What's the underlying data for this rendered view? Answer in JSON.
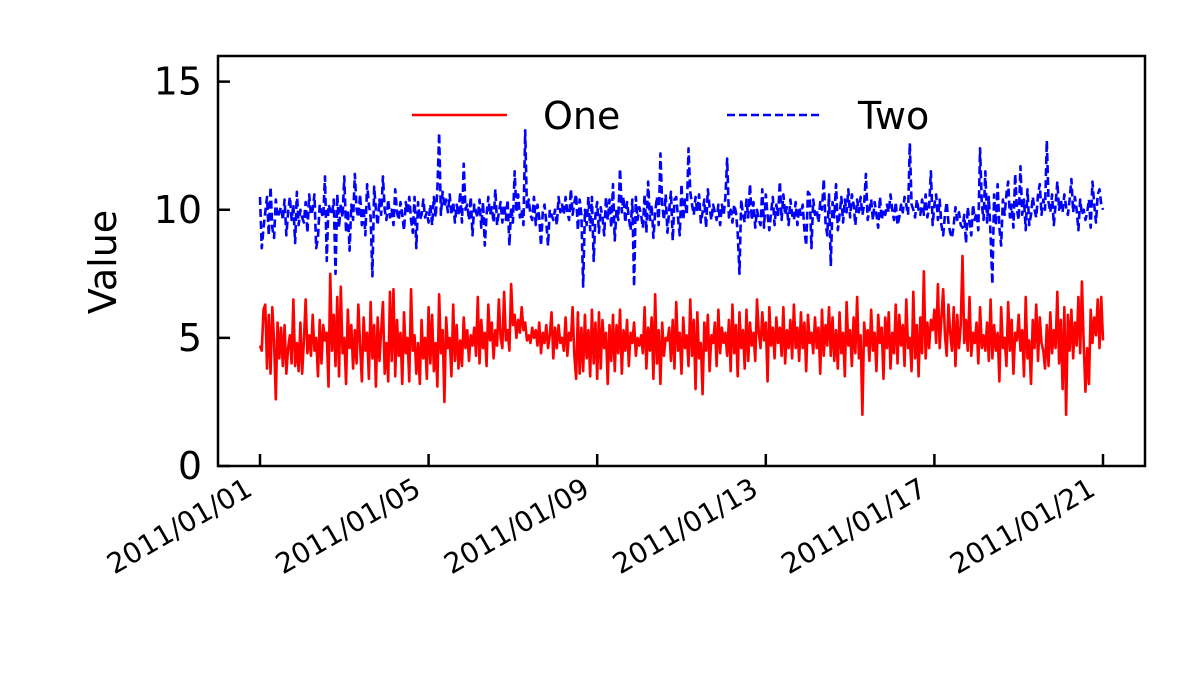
{
  "chart_data": {
    "type": "line",
    "title": "",
    "xlabel": "",
    "ylabel": "Value",
    "xlim": [
      "2011/01/01",
      "2011/01/21"
    ],
    "ylim": [
      0,
      16
    ],
    "yticks": [
      0,
      5,
      10,
      15
    ],
    "xticks": [
      "2011/01/01",
      "2011/01/05",
      "2011/01/09",
      "2011/01/13",
      "2011/01/17",
      "2011/01/21"
    ],
    "grid": false,
    "legend_position": "top-center",
    "x_start": "2011/01/01",
    "x_end": "2011/01/21",
    "series": [
      {
        "name": "One",
        "color": "#ff0000",
        "style": "solid",
        "values": [
          4.7,
          4.5,
          6.1,
          6.3,
          3.8,
          5.9,
          3.6,
          6.2,
          4.9,
          2.6,
          5.6,
          4.2,
          5.4,
          3.9,
          5.5,
          3.6,
          4.6,
          5.1,
          4.0,
          6.5,
          3.9,
          4.8,
          3.7,
          5.6,
          3.6,
          4.9,
          6.5,
          4.4,
          5.1,
          4.3,
          5.9,
          4.5,
          5.0,
          3.5,
          5.7,
          4.0,
          5.5,
          4.9,
          5.2,
          3.1,
          7.5,
          4.5,
          5.9,
          3.9,
          6.6,
          3.5,
          7.0,
          4.4,
          5.0,
          3.2,
          6.1,
          4.6,
          5.5,
          3.8,
          5.3,
          4.0,
          6.3,
          4.7,
          3.3,
          5.8,
          4.5,
          5.2,
          3.4,
          6.4,
          4.2,
          5.5,
          3.1,
          5.8,
          4.1,
          5.3,
          6.4,
          3.6,
          4.8,
          3.3,
          6.8,
          4.1,
          6.9,
          3.5,
          5.7,
          4.3,
          5.2,
          3.2,
          6.0,
          4.4,
          5.0,
          3.3,
          6.9,
          4.5,
          5.1,
          3.6,
          4.8,
          3.2,
          5.7,
          4.2,
          5.0,
          3.4,
          6.2,
          4.0,
          5.9,
          3.7,
          4.8,
          3.1,
          6.7,
          4.4,
          5.3,
          2.5,
          5.8,
          4.6,
          5.0,
          3.5,
          6.3,
          4.1,
          5.5,
          3.8,
          4.9,
          3.9,
          5.8,
          4.6,
          5.3,
          4.1,
          5.1,
          4.7,
          5.4,
          4.3,
          6.6,
          4.0,
          5.7,
          4.6,
          5.2,
          3.9,
          6.3,
          4.9,
          5.6,
          4.2,
          5.3,
          4.7,
          6.5,
          5.0,
          4.6,
          6.8,
          4.9,
          5.3,
          4.5,
          7.1,
          5.5,
          5.9,
          5.0,
          5.7,
          5.2,
          6.2,
          5.3,
          5.6,
          4.9,
          5.1,
          4.8,
          5.4,
          5.0,
          5.3,
          4.7,
          5.6,
          4.4,
          5.2,
          4.8,
          5.5,
          4.6,
          5.1,
          6.0,
          4.2,
          5.4,
          4.6,
          5.5,
          4.8,
          5.0,
          4.5,
          5.8,
          4.3,
          5.2,
          4.9,
          6.2,
          4.3,
          3.4,
          6.0,
          3.6,
          5.4,
          3.7,
          5.9,
          4.2,
          5.3,
          3.5,
          6.1,
          4.0,
          5.6,
          3.4,
          6.0,
          3.8,
          5.7,
          4.6,
          5.2,
          3.2,
          5.5,
          4.1,
          5.9,
          3.7,
          5.5,
          4.4,
          6.1,
          3.6,
          5.3,
          4.5,
          5.7,
          3.9,
          5.2,
          4.8,
          5.6,
          4.3,
          5.0,
          4.7,
          5.1,
          4.4,
          6.2,
          3.8,
          5.4,
          4.5,
          5.8,
          3.4,
          6.7,
          4.0,
          5.3,
          3.2,
          5.6,
          4.3,
          5.0,
          4.9,
          5.4,
          4.1,
          5.7,
          3.8,
          6.4,
          4.5,
          5.2,
          3.6,
          5.8,
          4.6,
          5.1,
          3.9,
          6.5,
          4.3,
          5.7,
          3.0,
          6.0,
          4.2,
          4.8,
          2.8,
          5.6,
          4.5,
          5.9,
          3.7,
          5.1,
          4.8,
          5.6,
          3.9,
          6.1,
          4.4,
          5.4,
          4.8,
          5.2,
          4.3,
          5.7,
          3.7,
          6.3,
          4.4,
          5.5,
          3.5,
          6.0,
          4.6,
          5.3,
          3.8,
          6.1,
          4.1,
          5.6,
          4.7,
          5.2,
          4.1,
          6.5,
          5.2,
          4.6,
          6.0,
          4.9,
          5.6,
          3.3,
          6.2,
          4.7,
          5.4,
          4.2,
          5.8,
          4.8,
          5.4,
          4.3,
          6.2,
          4.0,
          5.3,
          4.6,
          5.7,
          4.2,
          6.3,
          4.6,
          5.4,
          4.1,
          6.0,
          4.6,
          5.6,
          3.7,
          5.9,
          4.8,
          5.2,
          4.4,
          5.8,
          4.6,
          5.4,
          3.6,
          6.1,
          4.3,
          5.5,
          4.7,
          6.2,
          4.3,
          5.8,
          4.1,
          5.3,
          3.8,
          6.0,
          4.4,
          5.2,
          3.5,
          6.4,
          4.7,
          5.3,
          3.9,
          5.8,
          4.4,
          6.6,
          4.2,
          5.1,
          2.0,
          5.6,
          4.7,
          5.3,
          4.1,
          6.1,
          4.5,
          5.2,
          3.7,
          5.9,
          4.8,
          5.4,
          3.4,
          5.8,
          4.6,
          6.0,
          3.8,
          5.2,
          4.4,
          6.3,
          4.0,
          5.9,
          4.7,
          5.5,
          3.9,
          6.5,
          4.6,
          5.0,
          3.7,
          6.8,
          4.2,
          5.5,
          3.5,
          5.8,
          4.4,
          7.6,
          4.2,
          5.6,
          4.6,
          5.7,
          5.3,
          6.1,
          4.8,
          7.1,
          4.6,
          5.8,
          6.9,
          5.1,
          4.3,
          6.3,
          5.2,
          4.5,
          6.2,
          3.9,
          5.9,
          4.6,
          5.5,
          8.2,
          4.8,
          5.7,
          4.5,
          6.6,
          4.3,
          5.2,
          4.8,
          5.6,
          4.0,
          6.2,
          4.6,
          5.1,
          4.5,
          5.6,
          4.1,
          6.5,
          4.2,
          5.5,
          4.5,
          5.2,
          3.3,
          6.2,
          4.6,
          5.0,
          3.9,
          6.4,
          4.5,
          5.7,
          3.6,
          5.2,
          4.9,
          5.9,
          4.5,
          5.3,
          3.5,
          6.6,
          4.2,
          4.9,
          3.2,
          5.7,
          4.6,
          6.3,
          4.1,
          5.8,
          4.8,
          4.5,
          3.8,
          5.5,
          3.9,
          6.0,
          4.4,
          5.3,
          4.6,
          6.8,
          4.0,
          5.7,
          3.0,
          6.2,
          2.0,
          5.9,
          4.5,
          6.1,
          4.2,
          5.6,
          4.7,
          6.6,
          4.4,
          7.2,
          4.8,
          2.9,
          4.6,
          3.2,
          6.1,
          4.8,
          5.8,
          5.1,
          6.5,
          4.6,
          6.6,
          4.9
        ]
      },
      {
        "name": "Two",
        "color": "#0000ff",
        "style": "dashed",
        "values": [
          10.5,
          8.5,
          9.3,
          9.9,
          10.5,
          9.0,
          10.9,
          9.3,
          8.9,
          10.4,
          9.7,
          9.9,
          10.1,
          9.6,
          10.4,
          9.0,
          9.9,
          10.5,
          9.6,
          10.2,
          8.7,
          10.7,
          9.4,
          10.0,
          9.7,
          9.5,
          10.3,
          9.1,
          10.6,
          9.8,
          10.0,
          10.6,
          8.5,
          8.9,
          10.2,
          9.9,
          9.7,
          11.3,
          8.0,
          10.2,
          10.0,
          9.8,
          10.4,
          7.5,
          10.6,
          9.3,
          10.2,
          9.7,
          11.3,
          9.1,
          10.0,
          8.4,
          10.2,
          9.6,
          11.4,
          10.0,
          9.7,
          10.6,
          9.4,
          10.1,
          9.0,
          11.0,
          10.2,
          9.7,
          7.4,
          10.9,
          10.0,
          9.4,
          10.4,
          9.8,
          11.3,
          10.0,
          9.6,
          10.4,
          9.7,
          10.0,
          9.4,
          10.8,
          9.9,
          9.6,
          10.3,
          9.8,
          9.2,
          10.3,
          9.9,
          10.5,
          9.6,
          9.1,
          10.5,
          8.5,
          10.3,
          9.6,
          9.8,
          10.4,
          9.7,
          9.9,
          9.5,
          10.2,
          9.4,
          10.5,
          9.7,
          10.8,
          13.0,
          9.8,
          10.7,
          10.1,
          10.4,
          9.9,
          10.6,
          9.8,
          10.3,
          9.5,
          10.2,
          9.8,
          10.7,
          9.5,
          11.8,
          10.0,
          10.2,
          9.6,
          10.5,
          9.0,
          10.2,
          9.9,
          9.7,
          10.4,
          9.3,
          10.3,
          8.6,
          9.8,
          10.5,
          9.8,
          10.1,
          9.5,
          10.8,
          9.4,
          9.9,
          10.3,
          9.5,
          10.2,
          9.6,
          10.4,
          8.6,
          10.1,
          9.5,
          11.5,
          9.9,
          10.6,
          9.7,
          10.0,
          9.4,
          13.1,
          10.0,
          10.4,
          9.8,
          9.6,
          10.5,
          9.4,
          10.2,
          9.7,
          8.6,
          9.9,
          10.2,
          9.5,
          8.6,
          10.0,
          9.8,
          9.6,
          10.0,
          9.4,
          10.5,
          9.9,
          10.2,
          9.8,
          10.5,
          9.9,
          9.6,
          10.8,
          9.8,
          10.3,
          10.6,
          9.2,
          10.4,
          9.8,
          7.0,
          10.0,
          9.4,
          10.5,
          9.2,
          10.5,
          8.0,
          9.8,
          10.3,
          9.1,
          10.1,
          9.7,
          9.0,
          10.5,
          9.6,
          10.4,
          9.3,
          11.0,
          8.8,
          10.0,
          9.6,
          11.6,
          9.9,
          10.5,
          9.5,
          10.3,
          9.7,
          9.2,
          10.4,
          7.0,
          10.5,
          9.6,
          10.1,
          9.8,
          9.3,
          10.6,
          9.1,
          11.1,
          9.6,
          10.2,
          8.9,
          9.9,
          10.5,
          9.4,
          12.2,
          10.2,
          9.6,
          10.6,
          9.1,
          10.0,
          10.7,
          8.8,
          10.4,
          10.5,
          9.7,
          9.0,
          11.0,
          9.6,
          10.4,
          9.8,
          12.4,
          10.7,
          10.2,
          9.8,
          10.5,
          9.9,
          10.6,
          9.5,
          9.9,
          10.4,
          9.3,
          10.8,
          10.1,
          9.6,
          10.2,
          9.9,
          9.6,
          10.2,
          9.4,
          10.2,
          9.8,
          10.5,
          12.0,
          9.7,
          10.0,
          9.5,
          10.2,
          9.9,
          9.1,
          7.5,
          10.4,
          9.8,
          9.5,
          10.4,
          9.7,
          11.0,
          9.6,
          10.3,
          9.3,
          10.0,
          9.6,
          9.4,
          10.8,
          9.3,
          10.6,
          9.8,
          9.2,
          9.9,
          10.5,
          9.4,
          10.2,
          9.8,
          11.1,
          9.6,
          10.6,
          9.8,
          10.1,
          9.4,
          10.4,
          9.8,
          9.6,
          10.3,
          9.4,
          10.1,
          9.8,
          10.2,
          9.2,
          8.6,
          10.7,
          10.6,
          8.5,
          10.4,
          9.8,
          10.0,
          9.5,
          10.3,
          10.0,
          11.2,
          9.5,
          9.0,
          10.6,
          7.8,
          10.3,
          9.7,
          11.0,
          9.2,
          9.8,
          10.5,
          9.5,
          10.4,
          9.9,
          10.8,
          9.7,
          10.6,
          10.2,
          9.4,
          10.4,
          9.9,
          10.5,
          9.8,
          10.2,
          11.4,
          9.6,
          10.0,
          10.4,
          9.6,
          10.3,
          9.8,
          9.3,
          10.5,
          9.6,
          10.0,
          9.8,
          10.2,
          9.9,
          10.6,
          10.0,
          9.6,
          10.3,
          9.4,
          9.7,
          10.2,
          9.9,
          10.5,
          10.2,
          9.8,
          12.6,
          10.2,
          10.0,
          9.7,
          10.4,
          10.0,
          9.8,
          10.4,
          9.8,
          10.6,
          9.7,
          10.1,
          11.5,
          9.4,
          10.2,
          10.6,
          9.6,
          10.4,
          9.4,
          9.0,
          9.8,
          10.3,
          9.5,
          9.1,
          8.9,
          9.4,
          10.1,
          9.6,
          9.9,
          9.4,
          9.3,
          9.8,
          8.7,
          10.1,
          9.5,
          9.0,
          10.2,
          9.6,
          9.9,
          9.2,
          12.4,
          10.2,
          9.6,
          11.5,
          9.5,
          10.5,
          9.0,
          7.1,
          10.6,
          9.4,
          11.0,
          9.3,
          8.6,
          10.4,
          9.8,
          10.6,
          11.1,
          9.7,
          10.2,
          9.3,
          11.4,
          10.0,
          9.6,
          11.7,
          9.8,
          10.4,
          9.2,
          10.8,
          9.4,
          9.8,
          10.5,
          10.0,
          9.7,
          10.6,
          11.0,
          9.8,
          10.4,
          10.0,
          12.7,
          10.3,
          9.9,
          10.6,
          9.4,
          10.2,
          11.1,
          10.0,
          10.4,
          9.9,
          10.6,
          10.1,
          9.8,
          10.4,
          11.2,
          9.9,
          10.5,
          10.0,
          9.2,
          10.4,
          9.8,
          10.0,
          9.6,
          9.9,
          10.4,
          9.3,
          11.1,
          10.2,
          9.5,
          10.6,
          10.8,
          10.2,
          10.0
        ]
      }
    ]
  }
}
